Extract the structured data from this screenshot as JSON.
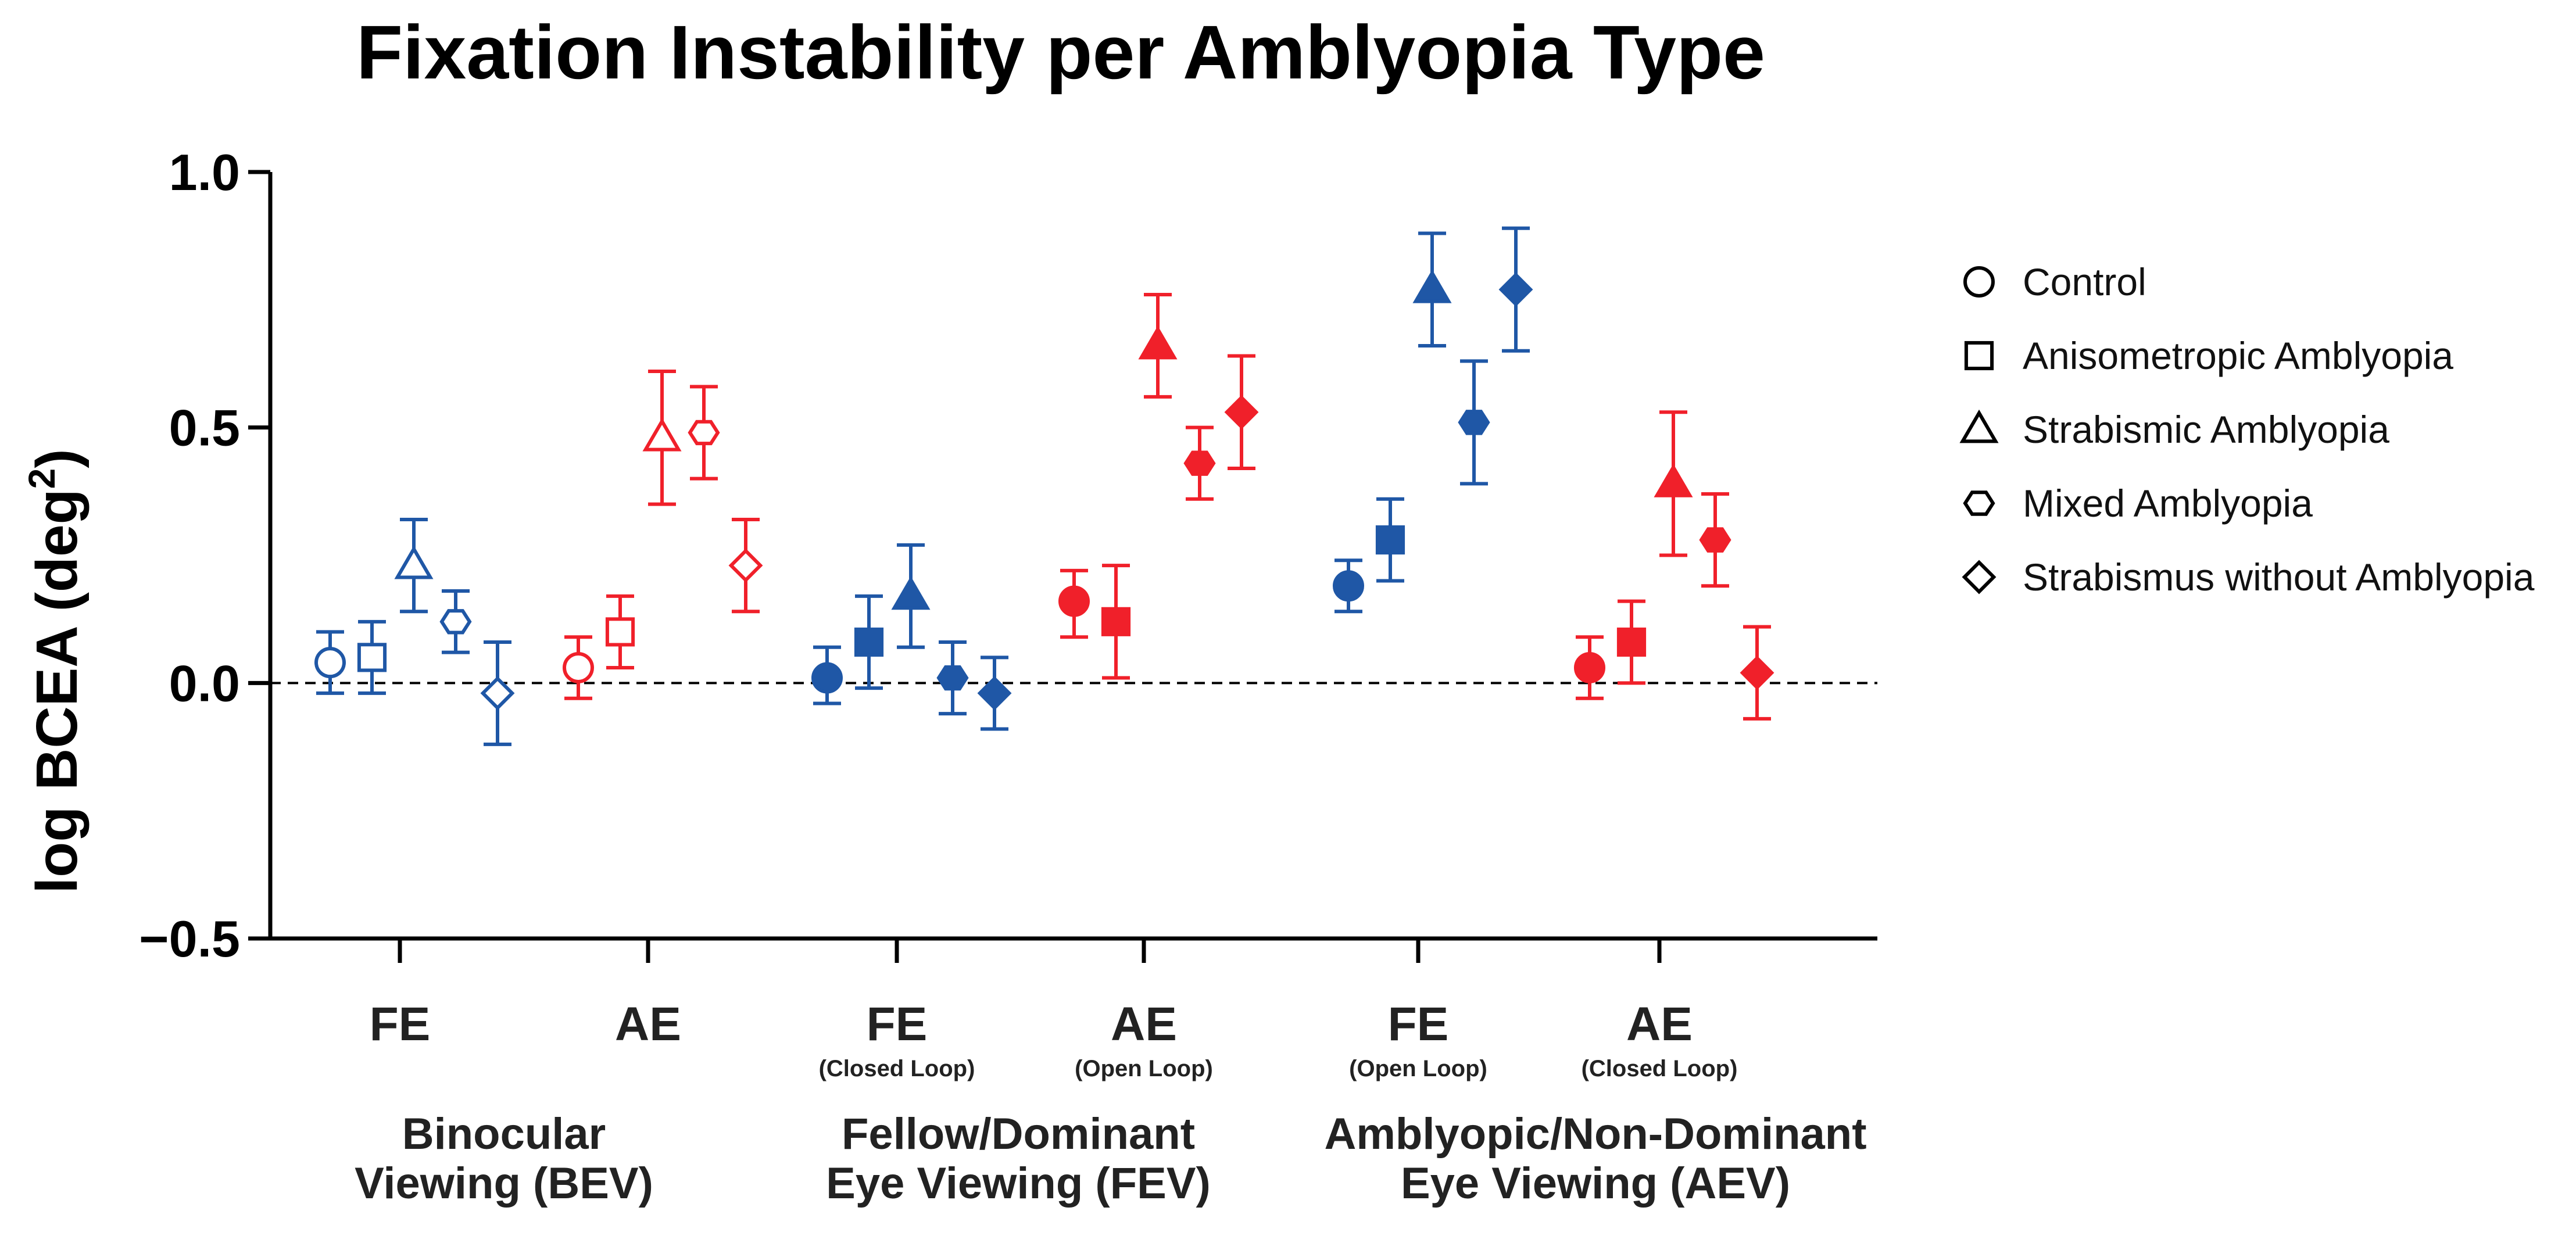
{
  "chart_data": {
    "type": "scatter",
    "title": "Fixation Instability per Amblyopia Type",
    "ylabel_main": "log BCEA (deg",
    "ylabel_sup": "2",
    "ylabel_close": ")",
    "ylim": [
      -0.5,
      1.0
    ],
    "yticks": [
      {
        "value": 1.0,
        "label": "1.0"
      },
      {
        "value": 0.5,
        "label": "0.5"
      },
      {
        "value": 0.0,
        "label": "0.0"
      },
      {
        "value": -0.5,
        "label": "−0.5"
      }
    ],
    "reference_line": 0.0,
    "categories": [
      {
        "label": "FE",
        "sub": ""
      },
      {
        "label": "AE",
        "sub": ""
      },
      {
        "label": "FE",
        "sub": "(Closed Loop)"
      },
      {
        "label": "AE",
        "sub": "(Open Loop)"
      },
      {
        "label": "FE",
        "sub": "(Open Loop)"
      },
      {
        "label": "AE",
        "sub": "(Closed Loop)"
      }
    ],
    "groups": [
      {
        "lines": [
          "Binocular",
          "Viewing (BEV)"
        ]
      },
      {
        "lines": [
          "Fellow/Dominant",
          "Eye Viewing (FEV)"
        ]
      },
      {
        "lines": [
          "Amblyopic/Non-Dominant",
          "Eye Viewing (AEV)"
        ]
      }
    ],
    "legend": [
      {
        "marker": "circle",
        "label": "Control"
      },
      {
        "marker": "square",
        "label": "Anisometropic Amblyopia"
      },
      {
        "marker": "triangle",
        "label": "Strabismic Amblyopia"
      },
      {
        "marker": "hexagon",
        "label": "Mixed Amblyopia"
      },
      {
        "marker": "diamond",
        "label": "Strabismus without Amblyopia"
      }
    ],
    "colors": {
      "fellow_eye": "#1f57a6",
      "amblyopic_eye": "#f0202a"
    },
    "series": [
      {
        "name": "BEV FE",
        "category": 0,
        "color": "#1f57a6",
        "filled": false,
        "points": [
          {
            "marker": "circle",
            "y": 0.04,
            "low": -0.02,
            "high": 0.1
          },
          {
            "marker": "square",
            "y": 0.05,
            "low": -0.02,
            "high": 0.12
          },
          {
            "marker": "triangle",
            "y": 0.23,
            "low": 0.14,
            "high": 0.32
          },
          {
            "marker": "hexagon",
            "y": 0.12,
            "low": 0.06,
            "high": 0.18
          },
          {
            "marker": "diamond",
            "y": -0.02,
            "low": -0.12,
            "high": 0.08
          }
        ]
      },
      {
        "name": "BEV AE",
        "category": 1,
        "color": "#f0202a",
        "filled": false,
        "points": [
          {
            "marker": "circle",
            "y": 0.03,
            "low": -0.03,
            "high": 0.09
          },
          {
            "marker": "square",
            "y": 0.1,
            "low": 0.03,
            "high": 0.17
          },
          {
            "marker": "triangle",
            "y": 0.48,
            "low": 0.35,
            "high": 0.61
          },
          {
            "marker": "hexagon",
            "y": 0.49,
            "low": 0.4,
            "high": 0.58
          },
          {
            "marker": "diamond",
            "y": 0.23,
            "low": 0.14,
            "high": 0.32
          }
        ]
      },
      {
        "name": "FEV FE (Closed Loop)",
        "category": 2,
        "color": "#1f57a6",
        "filled": true,
        "points": [
          {
            "marker": "circle",
            "y": 0.01,
            "low": -0.04,
            "high": 0.07
          },
          {
            "marker": "square",
            "y": 0.08,
            "low": -0.01,
            "high": 0.17
          },
          {
            "marker": "triangle",
            "y": 0.17,
            "low": 0.07,
            "high": 0.27
          },
          {
            "marker": "hexagon",
            "y": 0.01,
            "low": -0.06,
            "high": 0.08
          },
          {
            "marker": "diamond",
            "y": -0.02,
            "low": -0.09,
            "high": 0.05
          }
        ]
      },
      {
        "name": "FEV AE (Open Loop)",
        "category": 3,
        "color": "#f0202a",
        "filled": true,
        "points": [
          {
            "marker": "circle",
            "y": 0.16,
            "low": 0.09,
            "high": 0.22
          },
          {
            "marker": "square",
            "y": 0.12,
            "low": 0.01,
            "high": 0.23
          },
          {
            "marker": "triangle",
            "y": 0.66,
            "low": 0.56,
            "high": 0.76
          },
          {
            "marker": "hexagon",
            "y": 0.43,
            "low": 0.36,
            "high": 0.5
          },
          {
            "marker": "diamond",
            "y": 0.53,
            "low": 0.42,
            "high": 0.64
          }
        ]
      },
      {
        "name": "AEV FE (Open Loop)",
        "category": 4,
        "color": "#1f57a6",
        "filled": true,
        "points": [
          {
            "marker": "circle",
            "y": 0.19,
            "low": 0.14,
            "high": 0.24
          },
          {
            "marker": "square",
            "y": 0.28,
            "low": 0.2,
            "high": 0.36
          },
          {
            "marker": "triangle",
            "y": 0.77,
            "low": 0.66,
            "high": 0.88
          },
          {
            "marker": "hexagon",
            "y": 0.51,
            "low": 0.39,
            "high": 0.63
          },
          {
            "marker": "diamond",
            "y": 0.77,
            "low": 0.65,
            "high": 0.89
          }
        ]
      },
      {
        "name": "AEV AE (Closed Loop)",
        "category": 5,
        "color": "#f0202a",
        "filled": true,
        "points": [
          {
            "marker": "circle",
            "y": 0.03,
            "low": -0.03,
            "high": 0.09
          },
          {
            "marker": "square",
            "y": 0.08,
            "low": 0.0,
            "high": 0.16
          },
          {
            "marker": "triangle",
            "y": 0.39,
            "low": 0.25,
            "high": 0.53
          },
          {
            "marker": "hexagon",
            "y": 0.28,
            "low": 0.19,
            "high": 0.37
          },
          {
            "marker": "diamond",
            "y": 0.02,
            "low": -0.07,
            "high": 0.11
          }
        ]
      }
    ]
  }
}
